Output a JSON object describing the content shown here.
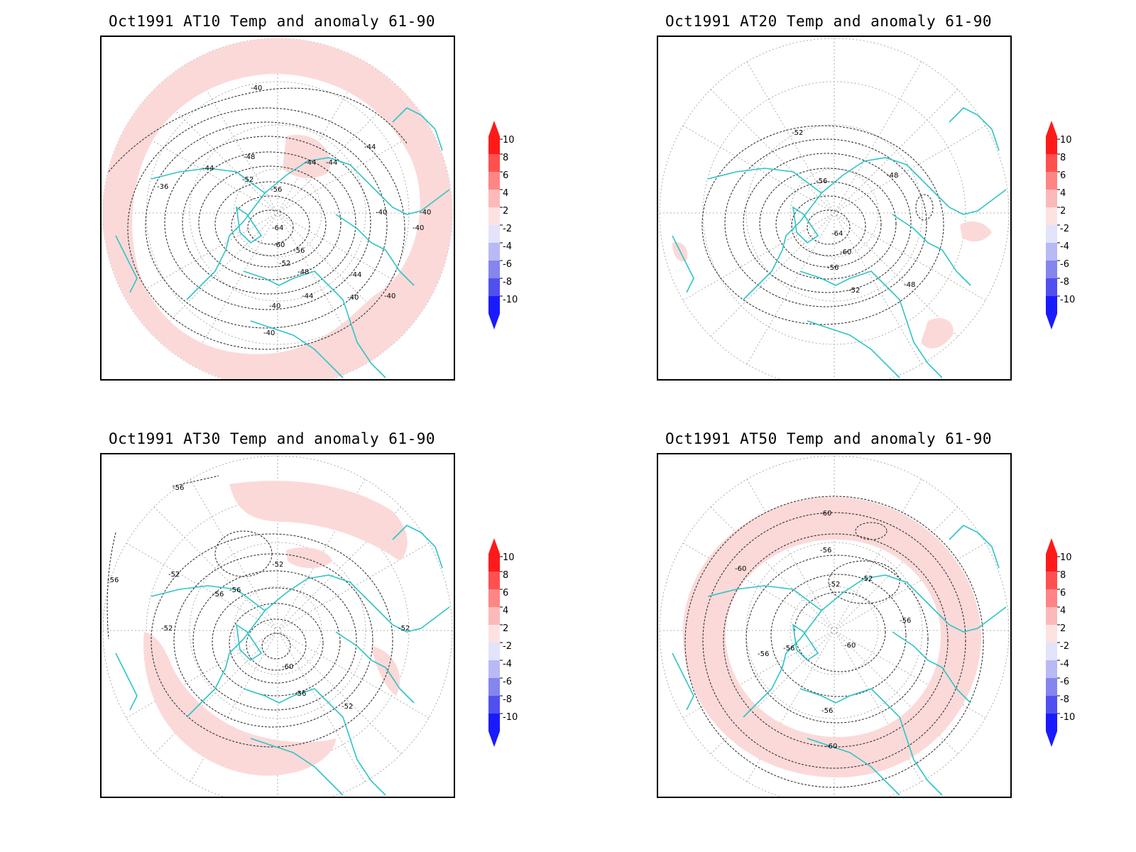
{
  "colors": {
    "coast": "#2ec4c4",
    "contour": "#222222",
    "anomaly_warm_light": "#fcd9d9",
    "grid": "#9a9a9a"
  },
  "colorbar": {
    "levels": [
      "10",
      "8",
      "6",
      "4",
      "2",
      "-2",
      "-4",
      "-6",
      "-8",
      "-10"
    ],
    "colors": [
      "#ff1a1a",
      "#ff5050",
      "#ff8585",
      "#fbb9b9",
      "#fde2e2",
      "#e3e3fb",
      "#b9b9f5",
      "#8585ee",
      "#5050f0",
      "#1a1aff"
    ]
  },
  "panels": [
    {
      "id": "at10",
      "title": "Oct1991 AT10 Temp and anomaly 61-90",
      "contour_labels": [
        "-40",
        "-48",
        "-44",
        "-44",
        "-44",
        "-44",
        "-36",
        "-52",
        "-56",
        "-40",
        "-40",
        "-64",
        "-40",
        "-60",
        "-56",
        "-52",
        "-48",
        "-44",
        "-44",
        "-40",
        "-40",
        "-40",
        "-40"
      ]
    },
    {
      "id": "at20",
      "title": "Oct1991 AT20 Temp and anomaly 61-90",
      "contour_labels": [
        "-52",
        "-56",
        "-48",
        "-64",
        "-60",
        "-56",
        "-52",
        "-48"
      ]
    },
    {
      "id": "at30",
      "title": "Oct1991 AT30 Temp and anomaly 61-90",
      "contour_labels": [
        "-56",
        "-56",
        "-52",
        "-52",
        "-56",
        "-56",
        "-52",
        "-60",
        "-56",
        "-52",
        "-52"
      ]
    },
    {
      "id": "at50",
      "title": "Oct1991 AT50 Temp and anomaly 61-90",
      "contour_labels": [
        "-60",
        "-56",
        "-60",
        "-52",
        "-52",
        "-56",
        "-56",
        "-56",
        "-60",
        "-56",
        "-60"
      ]
    }
  ]
}
